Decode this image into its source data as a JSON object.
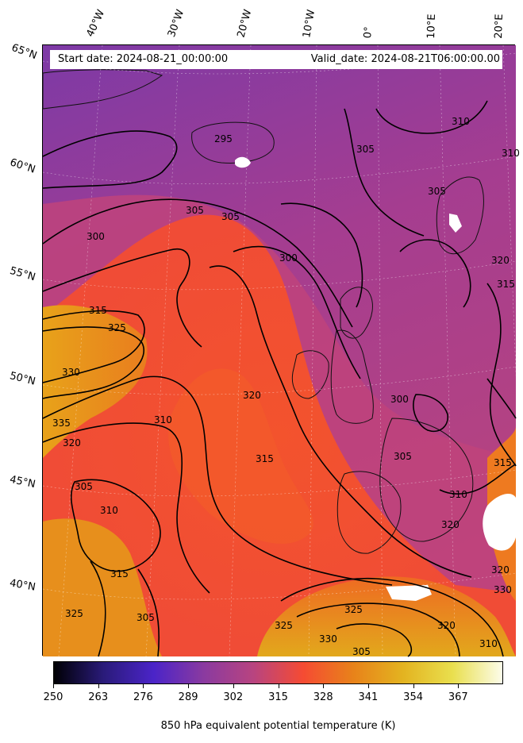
{
  "header": {
    "start_date": "Start date: 2024-08-21_00:00:00",
    "valid_date": "Valid_date: 2024-08-21T06:00:00.00"
  },
  "longitude_labels": [
    "40°W",
    "30°W",
    "20°W",
    "10°W",
    "0°",
    "10°E",
    "20°E"
  ],
  "latitude_labels": [
    "65°N",
    "60°N",
    "55°N",
    "50°N",
    "45°N",
    "40°N"
  ],
  "contour_labels": [
    "295",
    "305",
    "305",
    "305",
    "310",
    "300",
    "305",
    "300",
    "315",
    "325",
    "330",
    "320",
    "310",
    "335",
    "320",
    "305",
    "310",
    "315",
    "315",
    "325",
    "305",
    "300",
    "305",
    "310",
    "320",
    "325",
    "325",
    "330",
    "320",
    "310",
    "315",
    "320",
    "315",
    "310",
    "305",
    "320",
    "330"
  ],
  "colorbar": {
    "ticks": [
      "250",
      "263",
      "276",
      "289",
      "302",
      "315",
      "328",
      "341",
      "354",
      "367"
    ],
    "title": "850 hPa equivalent potential temperature (K)",
    "colormap": [
      "#000004",
      "#2a1b7a",
      "#4b24c8",
      "#8a3aa0",
      "#b84480",
      "#f54b33",
      "#e8821a",
      "#e3b320",
      "#e9df4e",
      "#fcfcea"
    ]
  },
  "colors": {
    "cold": "#7d3aa6",
    "mid": "#c2407a",
    "warm": "#f2502e",
    "hot": "#e8981c",
    "mask": "#ffffff"
  }
}
